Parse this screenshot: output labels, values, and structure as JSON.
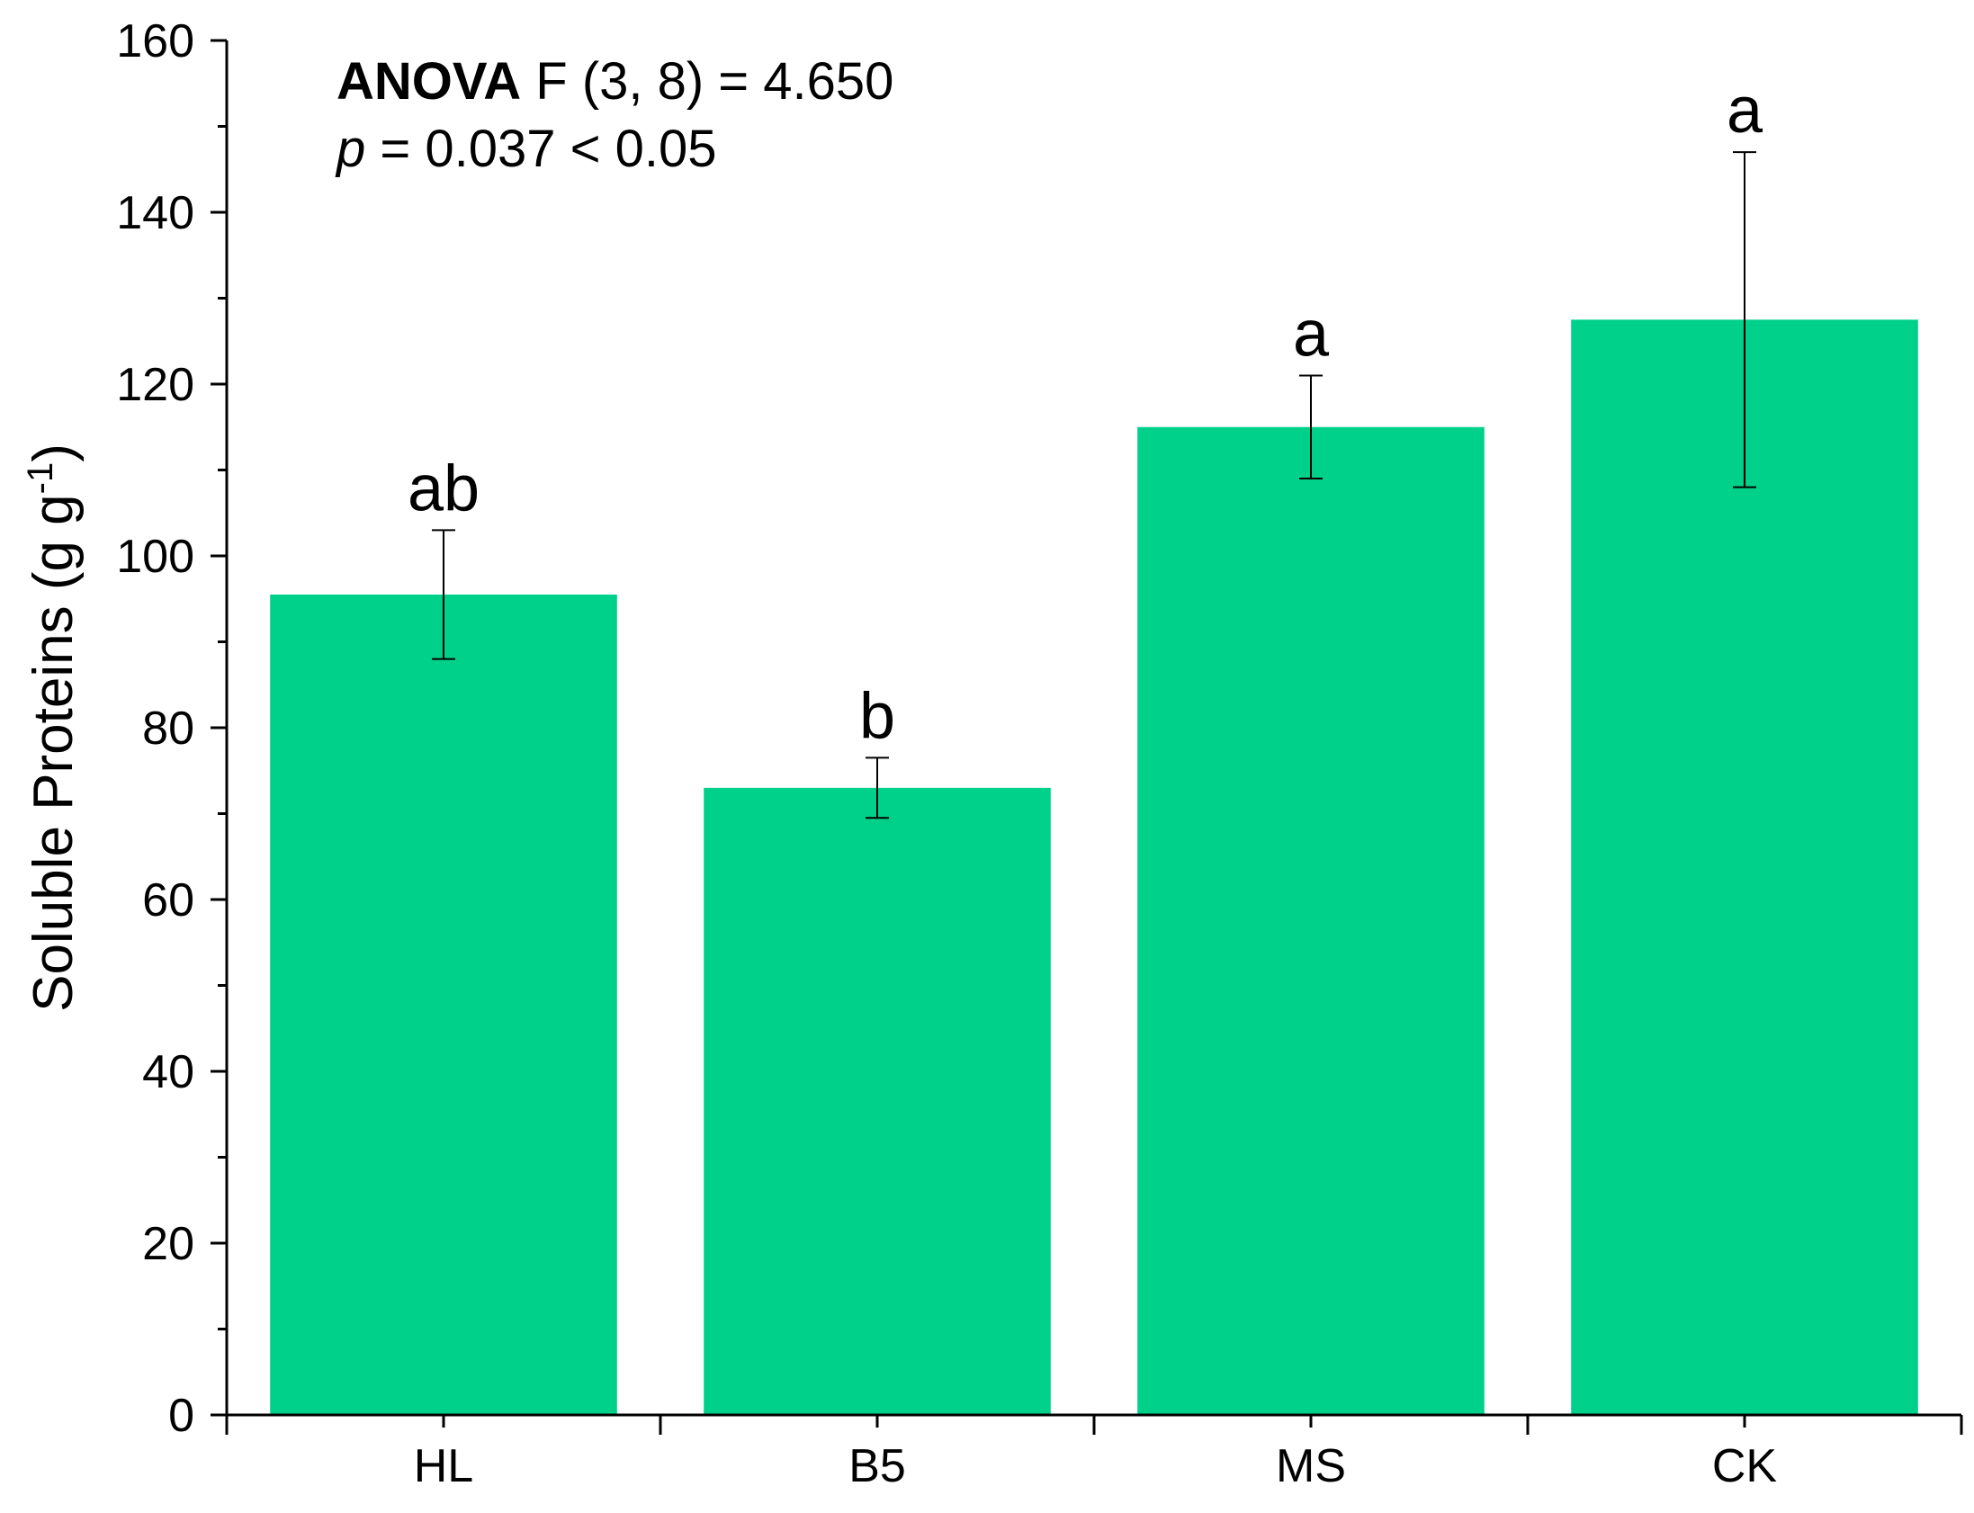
{
  "chart_data": {
    "type": "bar",
    "categories": [
      "HL",
      "B5",
      "MS",
      "CK"
    ],
    "values": [
      95.5,
      73.0,
      115.0,
      127.5
    ],
    "error_low": [
      88.0,
      69.5,
      109.0,
      108.0
    ],
    "error_high": [
      103.0,
      76.5,
      121.0,
      147.0
    ],
    "significance_letters": [
      "ab",
      "b",
      "a",
      "a"
    ],
    "ylabel_main": "Soluble Proteins (g g",
    "ylabel_sup": "-1",
    "ylabel_close": ")",
    "xlabel": "",
    "ylim": [
      0,
      160
    ],
    "yticks": [
      "0",
      "20",
      "40",
      "60",
      "80",
      "100",
      "120",
      "140",
      "160"
    ],
    "grid": false,
    "bar_color": "#00D18A",
    "annotation": {
      "line1_bold": "ANOVA",
      "line1_rest": " F (3, 8) = 4.650",
      "line2_italic": "p",
      "line2_rest": " = 0.037 < 0.05"
    }
  }
}
